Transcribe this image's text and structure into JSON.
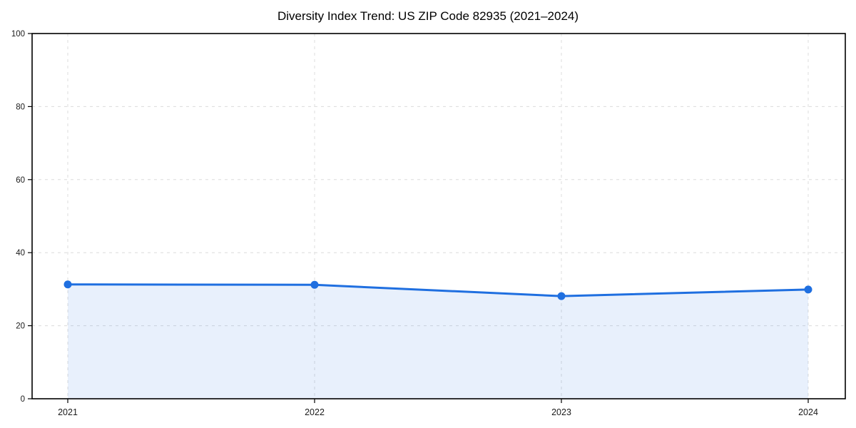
{
  "chart_data": {
    "type": "area",
    "title": "Diversity Index Trend: US ZIP Code 82935 (2021–2024)",
    "categories": [
      "2021",
      "2022",
      "2023",
      "2024"
    ],
    "series": [
      {
        "name": "Diversity Index",
        "values": [
          31.3,
          31.2,
          28.1,
          29.9
        ]
      }
    ],
    "xlabel": "",
    "ylabel": "",
    "ylim": [
      0,
      100
    ],
    "yticks": [
      0,
      20,
      40,
      60,
      80,
      100
    ],
    "grid": "dashed",
    "legend_position": "none",
    "colors": {
      "line": "#1f6fe0",
      "marker": "#1f6fe0",
      "fill": "#1f6fe0",
      "fill_opacity": "0.10",
      "grid": "#dcdcdc",
      "axis": "#000000",
      "tick_text": "#1a1a1a"
    }
  }
}
